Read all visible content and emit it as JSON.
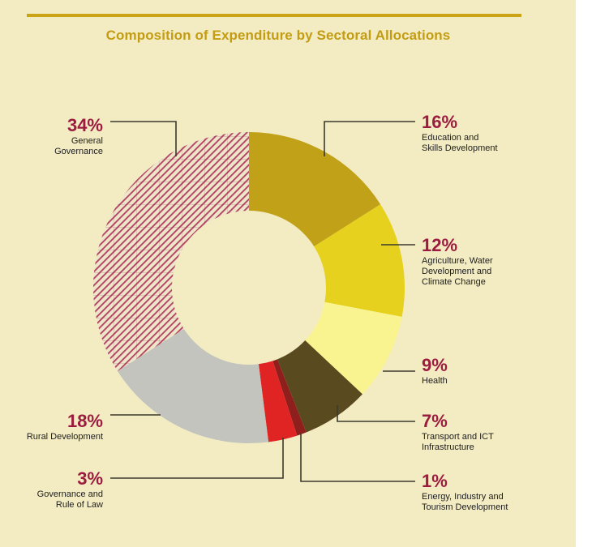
{
  "colors": {
    "background": "#f3ecc3",
    "title": "#c39c12",
    "percent_text": "#9b1c3f",
    "leader_line": "#3a3a2c"
  },
  "chart_data": {
    "type": "pie",
    "title": "Composition of Expenditure by Sectoral Allocations",
    "donut": true,
    "unit": "%",
    "slices": [
      {
        "label": "Education and Skills Development",
        "lines": [
          "Education and",
          "Skills Development"
        ],
        "value": 16,
        "display": "16%",
        "color": "#c0a117",
        "pattern": "none"
      },
      {
        "label": "Agriculture, Water Development and Climate Change",
        "lines": [
          "Agriculture, Water",
          "Development and",
          "Climate Change"
        ],
        "value": 12,
        "display": "12%",
        "color": "#e6d11f",
        "pattern": "none"
      },
      {
        "label": "Health",
        "lines": [
          "Health"
        ],
        "value": 9,
        "display": "9%",
        "color": "#faf490",
        "pattern": "none"
      },
      {
        "label": "Transport and ICT Infrastructure",
        "lines": [
          "Transport and ICT",
          "Infrastructure"
        ],
        "value": 7,
        "display": "7%",
        "color": "#5a4a1f",
        "pattern": "none"
      },
      {
        "label": "Energy, Industry and Tourism Development",
        "lines": [
          "Energy, Industry and",
          "Tourism Development"
        ],
        "value": 1,
        "display": "1%",
        "color": "#8e1f1c",
        "pattern": "none"
      },
      {
        "label": "Governance and Rule of Law",
        "lines": [
          "Governance and",
          "Rule of Law"
        ],
        "value": 3,
        "display": "3%",
        "color": "#e02424",
        "pattern": "none"
      },
      {
        "label": "Rural Development",
        "lines": [
          "Rural Development"
        ],
        "value": 18,
        "display": "18%",
        "color": "#c2c4bd",
        "pattern": "none"
      },
      {
        "label": "General Governance",
        "lines": [
          "General",
          "Governance"
        ],
        "value": 34,
        "display": "34%",
        "color": "#b8456b",
        "pattern": "hatch"
      }
    ]
  }
}
